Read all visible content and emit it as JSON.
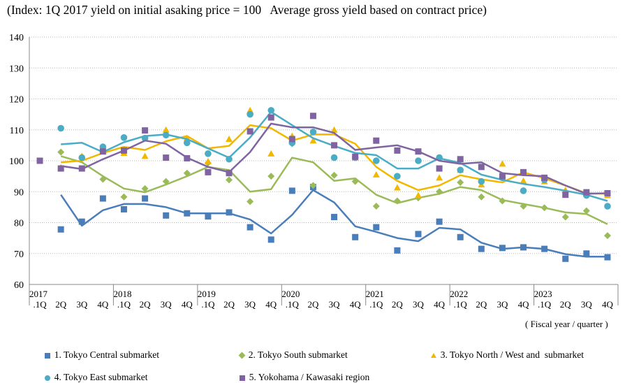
{
  "chart_data": {
    "type": "line",
    "title": "(Index: 1Q 2017 yield on initial asaking price = 100   Average gross yield based on contract price)",
    "x_unit_label": "( Fiscal year / quarter )",
    "ylim": [
      60,
      140
    ],
    "yticks": [
      "60",
      "70",
      "80",
      "90",
      "100",
      "110",
      "120",
      "130",
      "140"
    ],
    "quarter_labels": [
      ".1Q",
      "2Q",
      "3Q",
      "4Q",
      ".1Q",
      "2Q",
      "3Q",
      "4Q",
      ".1Q",
      "2Q",
      "3Q",
      "4Q",
      ".1Q",
      "2Q",
      "3Q",
      "4Q",
      ".1Q",
      "2Q",
      "3Q",
      "4Q",
      ".1Q",
      "2Q",
      "3Q",
      "4Q",
      ".1Q",
      "2Q",
      "3Q",
      "4Q"
    ],
    "year_labels": [
      "2017",
      "2018",
      "2019",
      "2020",
      "2021",
      "2022",
      "2023"
    ],
    "series": [
      {
        "name": "1. Tokyo Central submarket",
        "color": "#4A7EBB",
        "marker": "square",
        "points": [
          null,
          77.8,
          80.3,
          87.8,
          84.3,
          87.8,
          82.3,
          83.0,
          82.0,
          83.3,
          78.5,
          74.5,
          90.3,
          91.5,
          81.8,
          75.3,
          78.5,
          71.0,
          76.3,
          80.3,
          75.3,
          71.5,
          71.8,
          72.0,
          71.5,
          68.3,
          70.0,
          68.8
        ],
        "trend": [
          null,
          89.0,
          79.0,
          84.0,
          86.0,
          86.0,
          85.0,
          83.0,
          83.0,
          83.0,
          81.0,
          76.5,
          82.5,
          90.5,
          86.5,
          78.8,
          77.0,
          75.0,
          74.0,
          78.3,
          77.8,
          73.5,
          71.5,
          72.0,
          71.5,
          69.8,
          69.0,
          69.0
        ]
      },
      {
        "name": "2. Tokyo South submarket",
        "color": "#9BBB59",
        "marker": "diamond",
        "points": [
          null,
          102.8,
          101.0,
          94.0,
          88.3,
          91.0,
          93.3,
          96.0,
          99.3,
          93.8,
          86.8,
          95.0,
          105.5,
          92.0,
          95.3,
          93.3,
          85.3,
          87.0,
          88.0,
          90.0,
          93.0,
          88.3,
          87.0,
          85.3,
          84.8,
          81.8,
          83.8,
          75.8
        ],
        "trend": [
          null,
          101.5,
          99.5,
          95.0,
          91.0,
          89.8,
          92.3,
          95.0,
          98.0,
          97.0,
          90.0,
          90.8,
          101.0,
          99.5,
          93.5,
          94.3,
          89.0,
          86.3,
          88.0,
          89.3,
          91.5,
          90.5,
          87.3,
          86.0,
          84.8,
          83.3,
          82.8,
          79.5
        ]
      },
      {
        "name": "3. Tokyo North / West and  submarket",
        "color": "#F2B800",
        "marker": "triangle",
        "points": [
          null,
          97.8,
          101.5,
          103.0,
          102.5,
          101.5,
          110.0,
          107.3,
          99.8,
          107.0,
          116.3,
          102.3,
          108.0,
          106.5,
          110.0,
          101.0,
          95.5,
          91.3,
          88.8,
          94.5,
          97.0,
          92.3,
          99.0,
          93.5,
          93.3,
          90.5,
          89.3,
          88.8
        ],
        "trend": [
          null,
          99.5,
          100.0,
          102.5,
          104.5,
          103.5,
          106.3,
          108.0,
          104.0,
          104.8,
          111.5,
          110.5,
          106.5,
          108.5,
          108.5,
          105.5,
          98.0,
          93.5,
          90.5,
          92.0,
          95.3,
          94.0,
          93.0,
          96.3,
          94.3,
          92.0,
          89.5,
          89.3
        ]
      },
      {
        "name": "4. Tokyo East submarket",
        "color": "#4BACC6",
        "marker": "circle",
        "points": [
          null,
          110.5,
          101.0,
          104.5,
          107.5,
          107.3,
          108.3,
          105.8,
          102.3,
          100.5,
          115.0,
          116.3,
          105.8,
          109.3,
          101.0,
          101.0,
          100.0,
          95.0,
          100.0,
          101.0,
          97.0,
          93.3,
          94.5,
          90.3,
          93.8,
          null,
          88.8,
          85.3
        ],
        "trend": [
          null,
          105.3,
          105.8,
          102.8,
          106.0,
          108.0,
          108.5,
          107.0,
          104.0,
          101.0,
          107.5,
          115.8,
          111.5,
          107.3,
          104.8,
          102.5,
          101.8,
          97.5,
          97.5,
          100.8,
          99.3,
          95.5,
          93.8,
          92.5,
          91.5,
          90.3,
          89.0,
          87.0
        ]
      },
      {
        "name": "5. Yokohama / Kawasaki region",
        "color": "#8064A2",
        "marker": "square",
        "points": [
          100.0,
          97.5,
          97.5,
          103.0,
          103.3,
          109.8,
          101.0,
          100.8,
          96.3,
          96.0,
          109.5,
          114.0,
          107.0,
          114.5,
          105.0,
          101.3,
          106.5,
          103.3,
          103.0,
          97.5,
          100.5,
          98.0,
          95.0,
          96.3,
          94.5,
          89.0,
          89.8,
          89.5
        ],
        "trend": [
          null,
          98.3,
          97.3,
          100.5,
          103.3,
          106.5,
          105.5,
          101.0,
          98.0,
          96.3,
          102.8,
          112.0,
          110.8,
          110.8,
          109.0,
          103.5,
          104.3,
          105.0,
          103.0,
          100.0,
          99.0,
          99.5,
          96.0,
          95.3,
          95.0,
          92.0,
          89.3,
          89.5
        ]
      }
    ]
  }
}
